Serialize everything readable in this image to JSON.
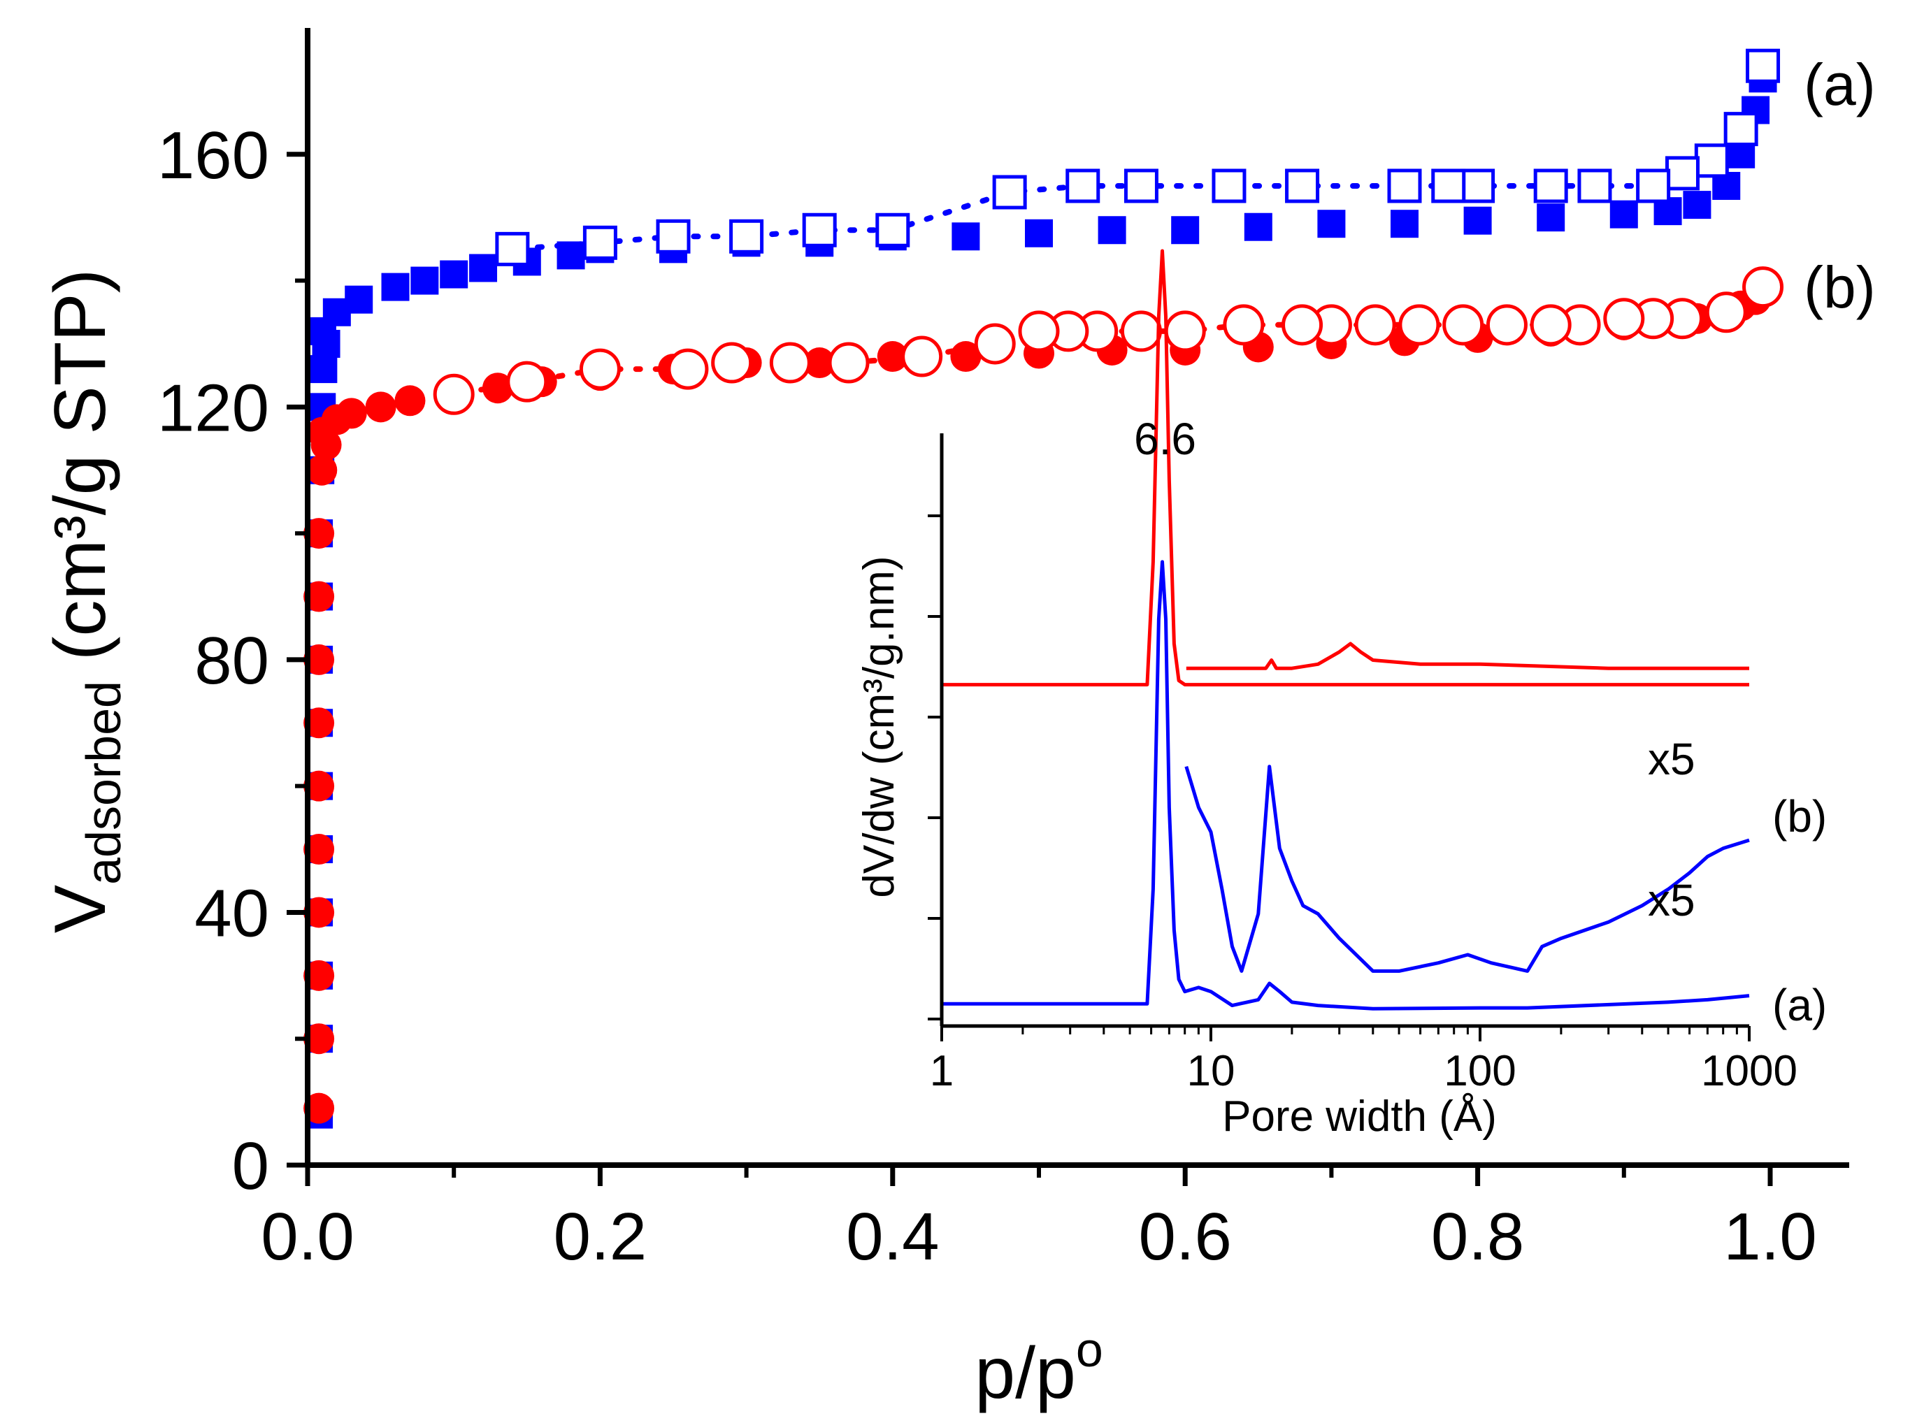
{
  "chart_data": [
    {
      "type": "scatter",
      "xlabel": "p/p",
      "xlabel_sup": "o",
      "ylabel_main": "V",
      "ylabel_sub": "adsorbed",
      "ylabel_rest": " (cm³/g STP)",
      "xlim": [
        0,
        1.05
      ],
      "ylim": [
        0,
        180
      ],
      "xticks": [
        0.0,
        0.2,
        0.4,
        0.6,
        0.8,
        1.0
      ],
      "xtick_labels": [
        "0.0",
        "0.2",
        "0.4",
        "0.6",
        "0.8",
        "1.0"
      ],
      "yticks": [
        0,
        40,
        80,
        120,
        160
      ],
      "ytick_labels": [
        "0",
        "40",
        "80",
        "120",
        "160"
      ],
      "series": [
        {
          "name": "(a)",
          "color": "#0000ff",
          "adsorption_marker": "filled-square",
          "desorption_marker": "open-square",
          "adsorption": [
            [
              0.001,
              8
            ],
            [
              0.001,
              20
            ],
            [
              0.001,
              30
            ],
            [
              0.001,
              40
            ],
            [
              0.001,
              50
            ],
            [
              0.001,
              60
            ],
            [
              0.001,
              70
            ],
            [
              0.001,
              80
            ],
            [
              0.001,
              90
            ],
            [
              0.001,
              100
            ],
            [
              0.002,
              110
            ],
            [
              0.003,
              120
            ],
            [
              0.004,
              126
            ],
            [
              0.006,
              130
            ],
            [
              0.01,
              132
            ],
            [
              0.02,
              135
            ],
            [
              0.035,
              137
            ],
            [
              0.06,
              139
            ],
            [
              0.08,
              140
            ],
            [
              0.1,
              141
            ],
            [
              0.12,
              142
            ],
            [
              0.15,
              143
            ],
            [
              0.18,
              144
            ],
            [
              0.2,
              145
            ],
            [
              0.25,
              145
            ],
            [
              0.3,
              146
            ],
            [
              0.35,
              146
            ],
            [
              0.4,
              147
            ],
            [
              0.45,
              147
            ],
            [
              0.5,
              147.5
            ],
            [
              0.55,
              148
            ],
            [
              0.6,
              148
            ],
            [
              0.65,
              148.5
            ],
            [
              0.7,
              149
            ],
            [
              0.75,
              149
            ],
            [
              0.8,
              149.5
            ],
            [
              0.85,
              150
            ],
            [
              0.9,
              150.5
            ],
            [
              0.93,
              151
            ],
            [
              0.95,
              152
            ],
            [
              0.97,
              155
            ],
            [
              0.98,
              160
            ],
            [
              0.99,
              167
            ],
            [
              0.995,
              172
            ]
          ],
          "desorption": [
            [
              0.995,
              174
            ],
            [
              0.98,
              164
            ],
            [
              0.96,
              159
            ],
            [
              0.94,
              157
            ],
            [
              0.92,
              155
            ],
            [
              0.88,
              155
            ],
            [
              0.85,
              155
            ],
            [
              0.8,
              155
            ],
            [
              0.78,
              155
            ],
            [
              0.75,
              155
            ],
            [
              0.68,
              155
            ],
            [
              0.63,
              155
            ],
            [
              0.57,
              155
            ],
            [
              0.53,
              155
            ],
            [
              0.48,
              154
            ],
            [
              0.4,
              148
            ],
            [
              0.35,
              148
            ],
            [
              0.3,
              147
            ],
            [
              0.25,
              147
            ],
            [
              0.2,
              146
            ],
            [
              0.14,
              145
            ]
          ]
        },
        {
          "name": "(b)",
          "color": "#ff0000",
          "adsorption_marker": "filled-circle",
          "desorption_marker": "open-circle",
          "adsorption": [
            [
              0.001,
              9
            ],
            [
              0.001,
              20
            ],
            [
              0.001,
              30
            ],
            [
              0.001,
              40
            ],
            [
              0.001,
              50
            ],
            [
              0.001,
              60
            ],
            [
              0.001,
              70
            ],
            [
              0.001,
              80
            ],
            [
              0.001,
              90
            ],
            [
              0.001,
              100
            ],
            [
              0.003,
              110
            ],
            [
              0.006,
              114
            ],
            [
              0.01,
              116
            ],
            [
              0.02,
              118
            ],
            [
              0.03,
              119
            ],
            [
              0.05,
              120
            ],
            [
              0.07,
              121
            ],
            [
              0.1,
              122
            ],
            [
              0.13,
              123
            ],
            [
              0.16,
              124
            ],
            [
              0.2,
              125
            ],
            [
              0.25,
              126
            ],
            [
              0.3,
              127
            ],
            [
              0.35,
              127
            ],
            [
              0.4,
              128
            ],
            [
              0.45,
              128
            ],
            [
              0.5,
              128.5
            ],
            [
              0.55,
              129
            ],
            [
              0.6,
              129
            ],
            [
              0.65,
              129.5
            ],
            [
              0.7,
              130
            ],
            [
              0.75,
              130.5
            ],
            [
              0.8,
              131
            ],
            [
              0.85,
              132
            ],
            [
              0.9,
              133
            ],
            [
              0.95,
              134
            ],
            [
              0.98,
              136
            ],
            [
              0.99,
              137
            ]
          ],
          "desorption": [
            [
              0.995,
              139
            ],
            [
              0.97,
              135
            ],
            [
              0.94,
              134
            ],
            [
              0.92,
              134
            ],
            [
              0.9,
              134
            ],
            [
              0.87,
              133
            ],
            [
              0.85,
              133
            ],
            [
              0.82,
              133
            ],
            [
              0.79,
              133
            ],
            [
              0.76,
              133
            ],
            [
              0.73,
              133
            ],
            [
              0.7,
              133
            ],
            [
              0.68,
              133
            ],
            [
              0.64,
              133
            ],
            [
              0.6,
              132
            ],
            [
              0.57,
              132
            ],
            [
              0.54,
              132
            ],
            [
              0.52,
              132
            ],
            [
              0.5,
              132
            ],
            [
              0.47,
              130
            ],
            [
              0.42,
              128
            ],
            [
              0.37,
              127
            ],
            [
              0.33,
              127
            ],
            [
              0.29,
              127
            ],
            [
              0.26,
              126
            ],
            [
              0.2,
              126
            ],
            [
              0.15,
              124
            ],
            [
              0.1,
              122
            ]
          ]
        }
      ]
    },
    {
      "type": "line",
      "xlabel": "Pore width (Å)",
      "ylabel": "dV/dw (cm³/g.nm)",
      "x_scale": "log",
      "xlim": [
        1,
        1000
      ],
      "xticks": [
        1,
        10,
        100,
        1000
      ],
      "xtick_labels": [
        "1",
        "10",
        "100",
        "1000"
      ],
      "annotations": [
        {
          "text": "6.6",
          "x": 6.6
        },
        {
          "text": "x5",
          "series": "(b)"
        },
        {
          "text": "x5",
          "series": "(a)"
        }
      ],
      "series": [
        {
          "name": "(b)",
          "color": "#ff0000",
          "offset": 4.0,
          "x": [
            1,
            5.8,
            6.1,
            6.4,
            6.6,
            6.8,
            7.0,
            7.3,
            7.6,
            8,
            10,
            20,
            40,
            100,
            1000
          ],
          "y": [
            0,
            0,
            1.5,
            4.5,
            5.3,
            4.5,
            2.5,
            0.5,
            0.05,
            0,
            0,
            0,
            0,
            0,
            0
          ]
        },
        {
          "name": "(b) x5",
          "color": "#ff0000",
          "offset": 4.2,
          "x": [
            8.1,
            12,
            16,
            16.8,
            17.5,
            20,
            25,
            30,
            33,
            36,
            40,
            60,
            100,
            300,
            1000
          ],
          "y": [
            0,
            0,
            0,
            0.1,
            0,
            0,
            0.05,
            0.2,
            0.3,
            0.2,
            0.1,
            0.05,
            0.05,
            0,
            0
          ]
        },
        {
          "name": "(a)",
          "color": "#0000ff",
          "offset": 0.0,
          "x": [
            1,
            5.8,
            6.1,
            6.4,
            6.6,
            6.8,
            7.0,
            7.3,
            7.6,
            8,
            9,
            10,
            12,
            15,
            16.5,
            18,
            20,
            25,
            40,
            100,
            150,
            500,
            700,
            1000
          ],
          "y": [
            0.1,
            0.1,
            1.5,
            4.8,
            5.5,
            4.8,
            2.5,
            1.0,
            0.4,
            0.25,
            0.3,
            0.25,
            0.08,
            0.15,
            0.35,
            0.25,
            0.12,
            0.08,
            0.04,
            0.05,
            0.05,
            0.12,
            0.15,
            0.2
          ]
        },
        {
          "name": "(a) x5",
          "color": "#0000ff",
          "offset": 0.0,
          "x": [
            8.1,
            9,
            10,
            11,
            12,
            13,
            15,
            16.5,
            18,
            20,
            22,
            25,
            30,
            40,
            50,
            70,
            90,
            110,
            150,
            170,
            200,
            300,
            400,
            500,
            600,
            700,
            800,
            1000
          ],
          "y": [
            3.0,
            2.5,
            2.2,
            1.5,
            0.8,
            0.5,
            1.2,
            3.0,
            2.0,
            1.6,
            1.3,
            1.2,
            0.9,
            0.5,
            0.5,
            0.6,
            0.7,
            0.6,
            0.5,
            0.8,
            0.9,
            1.1,
            1.3,
            1.5,
            1.7,
            1.9,
            2.0,
            2.1
          ]
        }
      ]
    }
  ]
}
